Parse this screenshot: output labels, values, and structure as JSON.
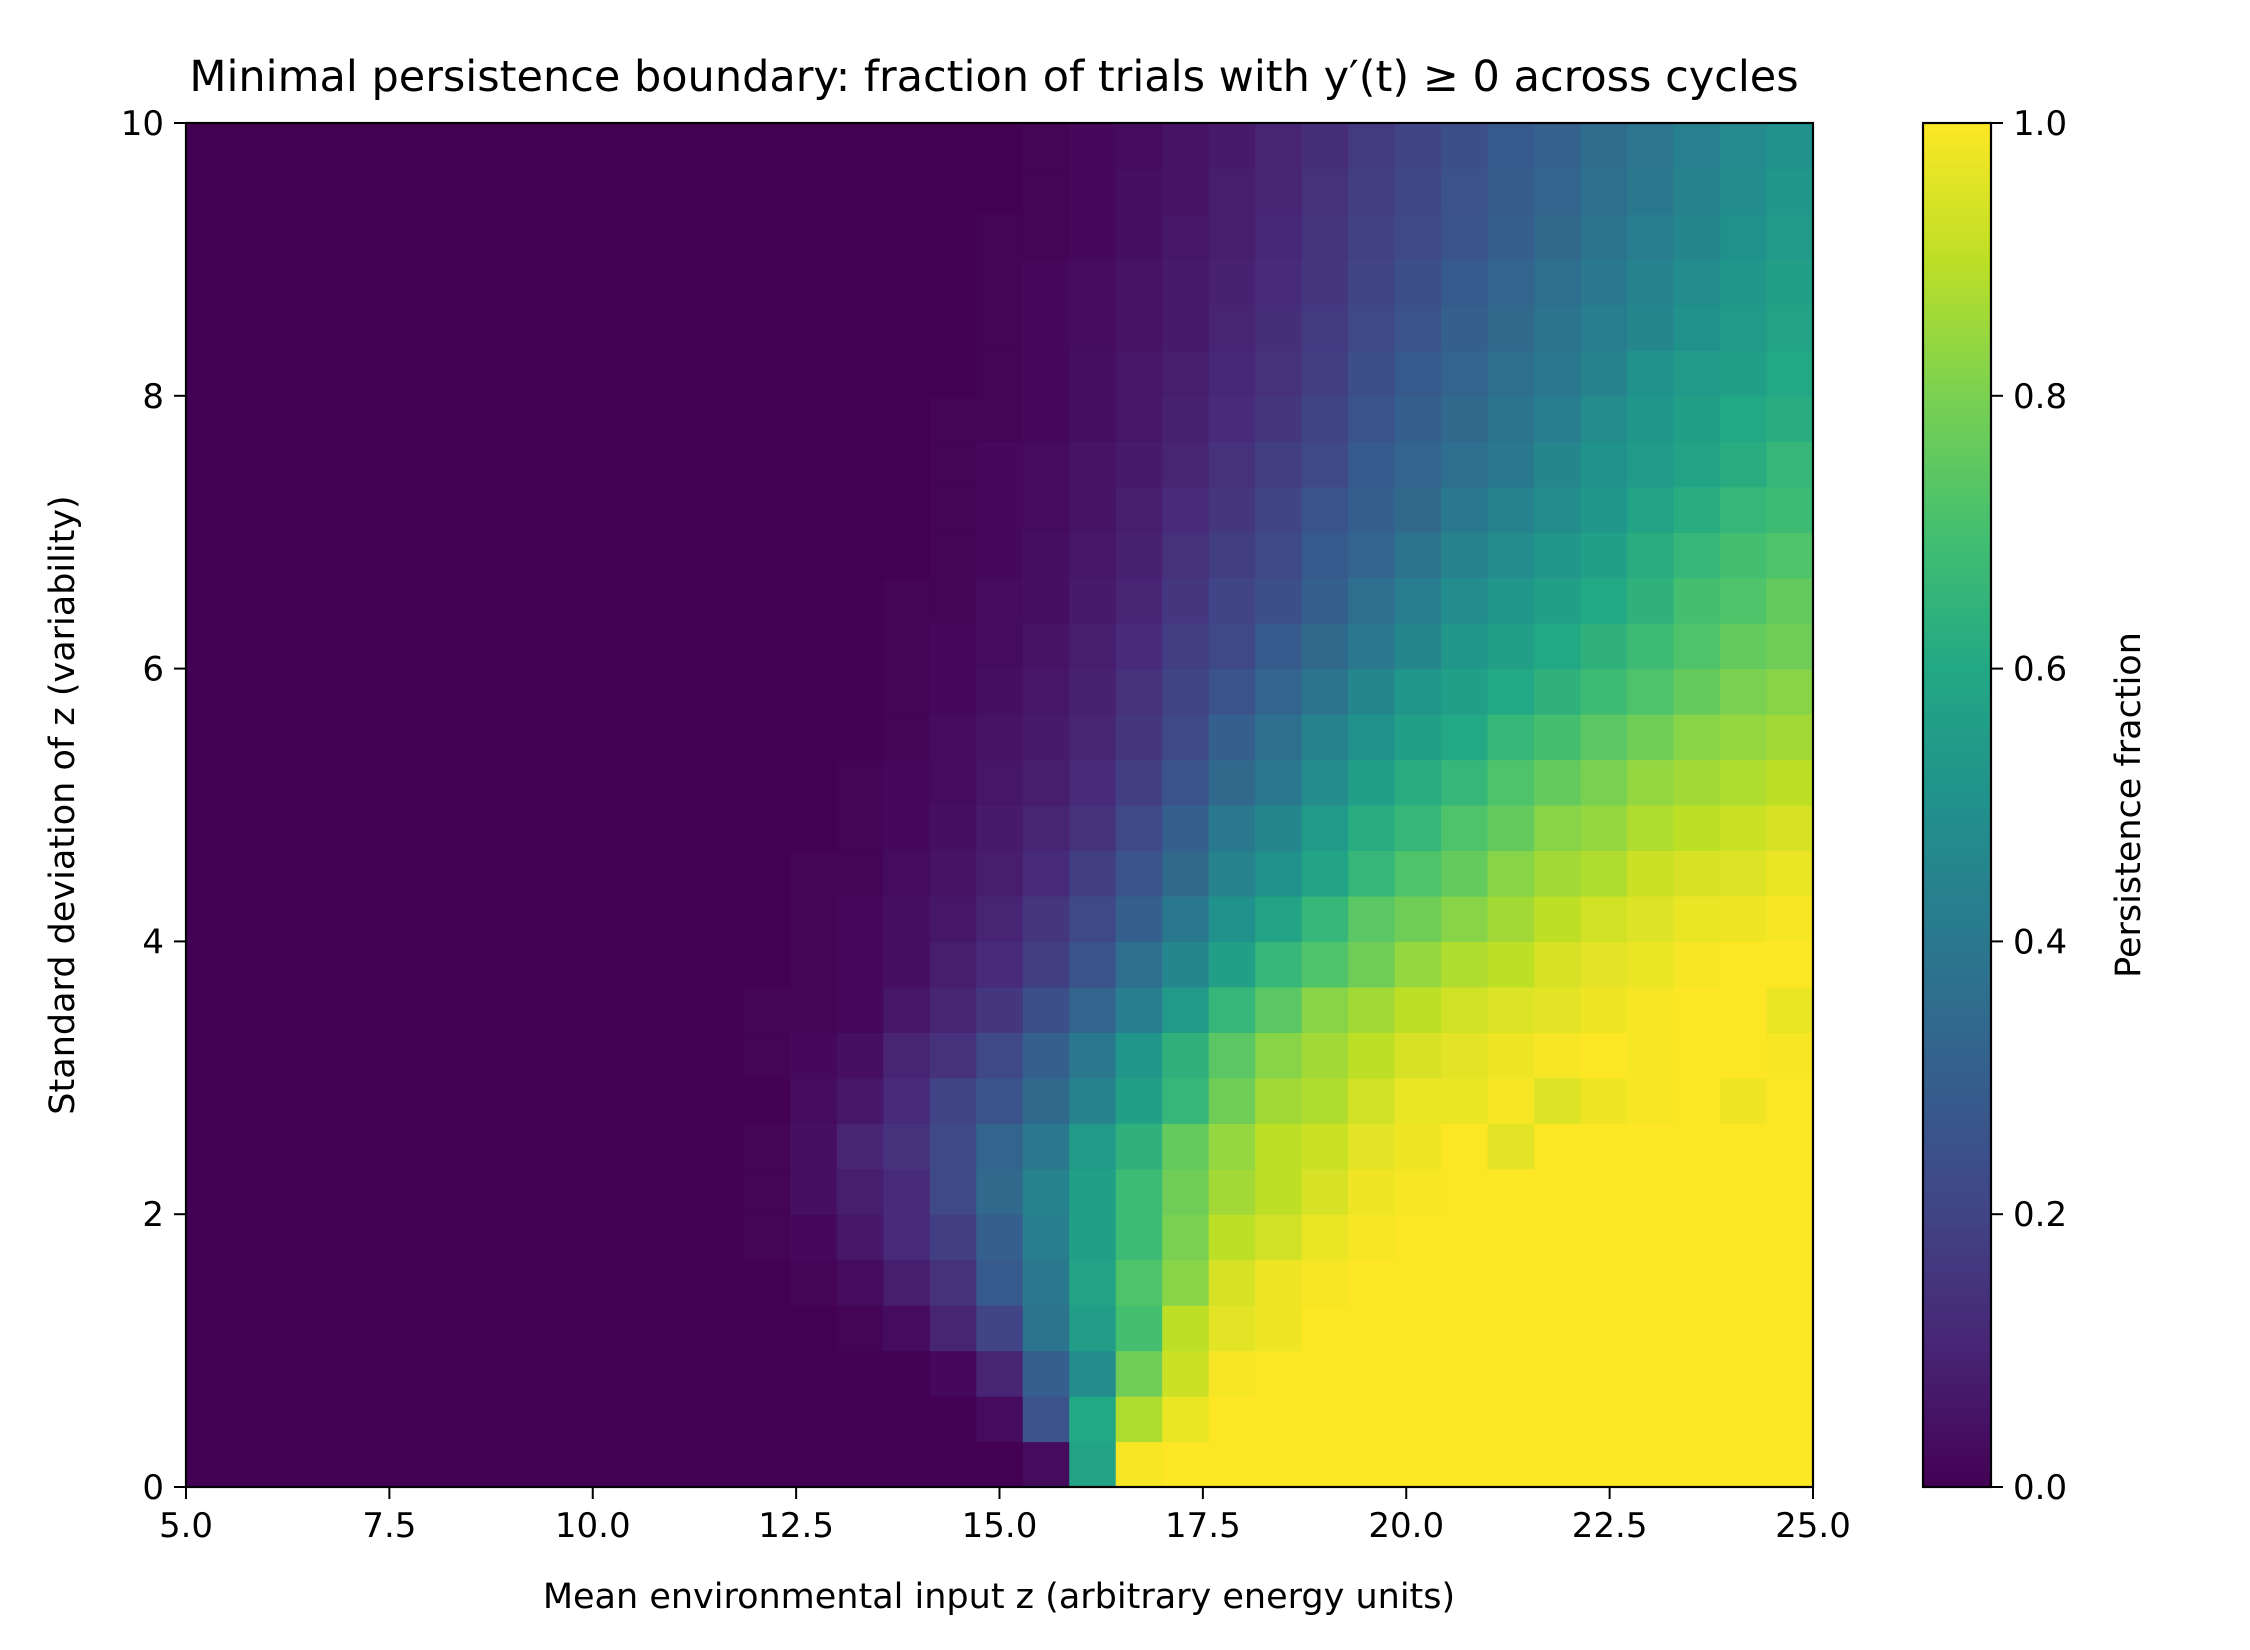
{
  "chart_data": {
    "type": "heatmap",
    "title": "Minimal persistence boundary: fraction of trials with y′(t) ≥ 0 across cycles",
    "xlabel": "Mean environmental input z (arbitrary energy units)",
    "ylabel": "Standard deviation of z (variability)",
    "xlim": [
      5.0,
      25.0
    ],
    "ylim": [
      0,
      10
    ],
    "x_ticks": [
      "5.0",
      "7.5",
      "10.0",
      "12.5",
      "15.0",
      "17.5",
      "20.0",
      "22.5",
      "25.0"
    ],
    "y_ticks": [
      "0",
      "2",
      "4",
      "6",
      "8",
      "10"
    ],
    "grid": false,
    "colormap": "viridis",
    "colorbar": {
      "label": "Persistence fraction",
      "range": [
        0.0,
        1.0
      ],
      "ticks": [
        "0.0",
        "0.2",
        "0.4",
        "0.6",
        "0.8",
        "1.0"
      ]
    },
    "x_bins": 35,
    "y_bins": 30,
    "x_centers_first_last": [
      5.29,
      24.71
    ],
    "y_centers_first_last": [
      0.17,
      9.83
    ],
    "boundary_model": {
      "description_note": "",
      "mean_threshold": 15.3,
      "gradient_width_base": 0.7,
      "gradient_width_per_sd": 0.55
    },
    "values_rows_bottom_to_top": [
      [
        0.0,
        0.0,
        0.0,
        0.0,
        0.0,
        0.0,
        0.0,
        0.0,
        0.0,
        0.0,
        0.0,
        0.0,
        0.0,
        0.0,
        0.0,
        0.0,
        0.0,
        0.0,
        0.03,
        0.58,
        0.99,
        1.0,
        1.0,
        1.0,
        1.0,
        1.0,
        1.0,
        1.0,
        1.0,
        1.0,
        1.0,
        1.0,
        1.0,
        1.0,
        1.0
      ],
      [
        0.0,
        0.0,
        0.0,
        0.0,
        0.0,
        0.0,
        0.0,
        0.0,
        0.0,
        0.0,
        0.0,
        0.0,
        0.0,
        0.0,
        0.0,
        0.0,
        0.0,
        0.03,
        0.25,
        0.6,
        0.88,
        0.97,
        1.0,
        1.0,
        1.0,
        1.0,
        1.0,
        1.0,
        1.0,
        1.0,
        1.0,
        1.0,
        1.0,
        1.0,
        1.0
      ],
      [
        0.0,
        0.0,
        0.0,
        0.0,
        0.0,
        0.0,
        0.0,
        0.0,
        0.0,
        0.0,
        0.0,
        0.0,
        0.0,
        0.0,
        0.0,
        0.0,
        0.02,
        0.1,
        0.3,
        0.48,
        0.78,
        0.92,
        0.99,
        1.0,
        1.0,
        1.0,
        1.0,
        1.0,
        1.0,
        1.0,
        1.0,
        1.0,
        1.0,
        1.0,
        1.0
      ],
      [
        0.0,
        0.0,
        0.0,
        0.0,
        0.0,
        0.0,
        0.0,
        0.0,
        0.0,
        0.0,
        0.0,
        0.0,
        0.0,
        0.0,
        0.01,
        0.03,
        0.1,
        0.2,
        0.38,
        0.55,
        0.7,
        0.9,
        0.96,
        0.98,
        1.0,
        1.0,
        1.0,
        1.0,
        1.0,
        1.0,
        1.0,
        1.0,
        1.0,
        1.0,
        1.0
      ],
      [
        0.0,
        0.0,
        0.0,
        0.0,
        0.0,
        0.0,
        0.0,
        0.0,
        0.0,
        0.0,
        0.0,
        0.0,
        0.0,
        0.01,
        0.03,
        0.08,
        0.14,
        0.28,
        0.4,
        0.58,
        0.72,
        0.82,
        0.94,
        0.98,
        0.99,
        1.0,
        1.0,
        1.0,
        1.0,
        1.0,
        1.0,
        1.0,
        1.0,
        1.0,
        1.0
      ],
      [
        0.0,
        0.0,
        0.0,
        0.0,
        0.0,
        0.0,
        0.0,
        0.0,
        0.0,
        0.0,
        0.0,
        0.0,
        0.01,
        0.02,
        0.06,
        0.12,
        0.18,
        0.3,
        0.42,
        0.56,
        0.68,
        0.8,
        0.9,
        0.93,
        0.97,
        0.99,
        1.0,
        1.0,
        1.0,
        1.0,
        1.0,
        1.0,
        1.0,
        1.0,
        1.0
      ],
      [
        0.0,
        0.0,
        0.0,
        0.0,
        0.0,
        0.0,
        0.0,
        0.0,
        0.0,
        0.0,
        0.0,
        0.0,
        0.01,
        0.04,
        0.08,
        0.12,
        0.22,
        0.34,
        0.44,
        0.56,
        0.68,
        0.78,
        0.86,
        0.9,
        0.94,
        0.98,
        0.99,
        1.0,
        1.0,
        1.0,
        1.0,
        1.0,
        1.0,
        1.0,
        1.0
      ],
      [
        0.0,
        0.0,
        0.0,
        0.0,
        0.0,
        0.0,
        0.0,
        0.0,
        0.0,
        0.0,
        0.0,
        0.0,
        0.01,
        0.04,
        0.1,
        0.14,
        0.22,
        0.32,
        0.4,
        0.54,
        0.64,
        0.76,
        0.84,
        0.9,
        0.92,
        0.96,
        0.98,
        1.0,
        0.96,
        1.0,
        1.0,
        1.0,
        1.0,
        1.0,
        1.0
      ],
      [
        0.0,
        0.0,
        0.0,
        0.0,
        0.0,
        0.0,
        0.0,
        0.0,
        0.0,
        0.0,
        0.0,
        0.0,
        0.0,
        0.03,
        0.06,
        0.12,
        0.2,
        0.26,
        0.34,
        0.44,
        0.56,
        0.66,
        0.78,
        0.86,
        0.88,
        0.93,
        0.97,
        0.97,
        0.99,
        0.95,
        0.98,
        0.99,
        1.0,
        0.98,
        1.0
      ],
      [
        0.0,
        0.0,
        0.0,
        0.0,
        0.0,
        0.0,
        0.0,
        0.0,
        0.0,
        0.0,
        0.0,
        0.0,
        0.01,
        0.02,
        0.04,
        0.1,
        0.14,
        0.22,
        0.3,
        0.4,
        0.52,
        0.64,
        0.74,
        0.82,
        0.86,
        0.9,
        0.94,
        0.96,
        0.98,
        0.99,
        1.0,
        0.99,
        1.0,
        1.0,
        0.99
      ],
      [
        0.0,
        0.0,
        0.0,
        0.0,
        0.0,
        0.0,
        0.0,
        0.0,
        0.0,
        0.0,
        0.0,
        0.0,
        0.01,
        0.01,
        0.02,
        0.06,
        0.1,
        0.16,
        0.24,
        0.32,
        0.42,
        0.54,
        0.66,
        0.74,
        0.82,
        0.86,
        0.9,
        0.93,
        0.95,
        0.96,
        0.98,
        0.99,
        1.0,
        1.0,
        0.97
      ],
      [
        0.0,
        0.0,
        0.0,
        0.0,
        0.0,
        0.0,
        0.0,
        0.0,
        0.0,
        0.0,
        0.0,
        0.0,
        0.0,
        0.01,
        0.02,
        0.04,
        0.08,
        0.12,
        0.18,
        0.26,
        0.36,
        0.46,
        0.56,
        0.66,
        0.72,
        0.78,
        0.84,
        0.88,
        0.9,
        0.94,
        0.96,
        0.97,
        0.99,
        1.0,
        1.0
      ],
      [
        0.0,
        0.0,
        0.0,
        0.0,
        0.0,
        0.0,
        0.0,
        0.0,
        0.0,
        0.0,
        0.0,
        0.0,
        0.0,
        0.01,
        0.02,
        0.04,
        0.06,
        0.1,
        0.16,
        0.22,
        0.3,
        0.4,
        0.5,
        0.58,
        0.66,
        0.74,
        0.78,
        0.82,
        0.86,
        0.9,
        0.93,
        0.95,
        0.97,
        0.98,
        0.99
      ],
      [
        0.0,
        0.0,
        0.0,
        0.0,
        0.0,
        0.0,
        0.0,
        0.0,
        0.0,
        0.0,
        0.0,
        0.0,
        0.0,
        0.01,
        0.01,
        0.03,
        0.05,
        0.08,
        0.12,
        0.18,
        0.26,
        0.34,
        0.44,
        0.5,
        0.58,
        0.66,
        0.72,
        0.76,
        0.82,
        0.86,
        0.88,
        0.92,
        0.94,
        0.95,
        0.97
      ],
      [
        0.0,
        0.0,
        0.0,
        0.0,
        0.0,
        0.0,
        0.0,
        0.0,
        0.0,
        0.0,
        0.0,
        0.0,
        0.0,
        0.0,
        0.01,
        0.02,
        0.04,
        0.07,
        0.1,
        0.14,
        0.22,
        0.3,
        0.4,
        0.46,
        0.54,
        0.62,
        0.66,
        0.72,
        0.76,
        0.82,
        0.84,
        0.88,
        0.9,
        0.92,
        0.94
      ],
      [
        0.0,
        0.0,
        0.0,
        0.0,
        0.0,
        0.0,
        0.0,
        0.0,
        0.0,
        0.0,
        0.0,
        0.0,
        0.0,
        0.0,
        0.01,
        0.02,
        0.03,
        0.06,
        0.08,
        0.12,
        0.18,
        0.26,
        0.34,
        0.4,
        0.48,
        0.56,
        0.62,
        0.66,
        0.72,
        0.76,
        0.8,
        0.84,
        0.86,
        0.88,
        0.9
      ],
      [
        0.0,
        0.0,
        0.0,
        0.0,
        0.0,
        0.0,
        0.0,
        0.0,
        0.0,
        0.0,
        0.0,
        0.0,
        0.0,
        0.0,
        0.0,
        0.01,
        0.03,
        0.05,
        0.07,
        0.1,
        0.16,
        0.22,
        0.3,
        0.36,
        0.44,
        0.5,
        0.56,
        0.6,
        0.66,
        0.7,
        0.74,
        0.78,
        0.82,
        0.84,
        0.86
      ],
      [
        0.0,
        0.0,
        0.0,
        0.0,
        0.0,
        0.0,
        0.0,
        0.0,
        0.0,
        0.0,
        0.0,
        0.0,
        0.0,
        0.0,
        0.0,
        0.01,
        0.02,
        0.04,
        0.06,
        0.09,
        0.14,
        0.2,
        0.26,
        0.32,
        0.38,
        0.46,
        0.52,
        0.56,
        0.6,
        0.64,
        0.68,
        0.72,
        0.76,
        0.8,
        0.82
      ],
      [
        0.0,
        0.0,
        0.0,
        0.0,
        0.0,
        0.0,
        0.0,
        0.0,
        0.0,
        0.0,
        0.0,
        0.0,
        0.0,
        0.0,
        0.0,
        0.01,
        0.02,
        0.03,
        0.05,
        0.08,
        0.12,
        0.18,
        0.22,
        0.28,
        0.34,
        0.4,
        0.46,
        0.52,
        0.56,
        0.6,
        0.64,
        0.68,
        0.72,
        0.76,
        0.78
      ],
      [
        0.0,
        0.0,
        0.0,
        0.0,
        0.0,
        0.0,
        0.0,
        0.0,
        0.0,
        0.0,
        0.0,
        0.0,
        0.0,
        0.0,
        0.0,
        0.01,
        0.01,
        0.03,
        0.04,
        0.07,
        0.1,
        0.16,
        0.2,
        0.24,
        0.3,
        0.36,
        0.42,
        0.48,
        0.52,
        0.56,
        0.6,
        0.64,
        0.7,
        0.72,
        0.76
      ],
      [
        0.0,
        0.0,
        0.0,
        0.0,
        0.0,
        0.0,
        0.0,
        0.0,
        0.0,
        0.0,
        0.0,
        0.0,
        0.0,
        0.0,
        0.0,
        0.0,
        0.01,
        0.02,
        0.04,
        0.06,
        0.09,
        0.14,
        0.18,
        0.22,
        0.28,
        0.32,
        0.38,
        0.44,
        0.48,
        0.52,
        0.56,
        0.62,
        0.66,
        0.7,
        0.72
      ],
      [
        0.0,
        0.0,
        0.0,
        0.0,
        0.0,
        0.0,
        0.0,
        0.0,
        0.0,
        0.0,
        0.0,
        0.0,
        0.0,
        0.0,
        0.0,
        0.0,
        0.01,
        0.02,
        0.03,
        0.05,
        0.08,
        0.12,
        0.16,
        0.2,
        0.26,
        0.3,
        0.34,
        0.4,
        0.44,
        0.48,
        0.52,
        0.58,
        0.62,
        0.66,
        0.68
      ],
      [
        0.0,
        0.0,
        0.0,
        0.0,
        0.0,
        0.0,
        0.0,
        0.0,
        0.0,
        0.0,
        0.0,
        0.0,
        0.0,
        0.0,
        0.0,
        0.0,
        0.01,
        0.02,
        0.03,
        0.05,
        0.07,
        0.1,
        0.14,
        0.18,
        0.22,
        0.28,
        0.32,
        0.36,
        0.4,
        0.46,
        0.5,
        0.54,
        0.58,
        0.62,
        0.66
      ],
      [
        0.0,
        0.0,
        0.0,
        0.0,
        0.0,
        0.0,
        0.0,
        0.0,
        0.0,
        0.0,
        0.0,
        0.0,
        0.0,
        0.0,
        0.0,
        0.0,
        0.01,
        0.01,
        0.02,
        0.04,
        0.06,
        0.09,
        0.12,
        0.16,
        0.2,
        0.26,
        0.3,
        0.34,
        0.38,
        0.42,
        0.48,
        0.52,
        0.56,
        0.6,
        0.62
      ],
      [
        0.0,
        0.0,
        0.0,
        0.0,
        0.0,
        0.0,
        0.0,
        0.0,
        0.0,
        0.0,
        0.0,
        0.0,
        0.0,
        0.0,
        0.0,
        0.0,
        0.0,
        0.01,
        0.02,
        0.04,
        0.06,
        0.08,
        0.11,
        0.14,
        0.18,
        0.24,
        0.28,
        0.32,
        0.36,
        0.4,
        0.44,
        0.5,
        0.54,
        0.56,
        0.6
      ],
      [
        0.0,
        0.0,
        0.0,
        0.0,
        0.0,
        0.0,
        0.0,
        0.0,
        0.0,
        0.0,
        0.0,
        0.0,
        0.0,
        0.0,
        0.0,
        0.0,
        0.0,
        0.01,
        0.02,
        0.03,
        0.05,
        0.07,
        0.1,
        0.13,
        0.17,
        0.22,
        0.26,
        0.3,
        0.34,
        0.38,
        0.42,
        0.46,
        0.5,
        0.54,
        0.58
      ],
      [
        0.0,
        0.0,
        0.0,
        0.0,
        0.0,
        0.0,
        0.0,
        0.0,
        0.0,
        0.0,
        0.0,
        0.0,
        0.0,
        0.0,
        0.0,
        0.0,
        0.0,
        0.01,
        0.02,
        0.03,
        0.05,
        0.07,
        0.09,
        0.12,
        0.16,
        0.2,
        0.24,
        0.28,
        0.32,
        0.36,
        0.4,
        0.44,
        0.48,
        0.52,
        0.56
      ],
      [
        0.0,
        0.0,
        0.0,
        0.0,
        0.0,
        0.0,
        0.0,
        0.0,
        0.0,
        0.0,
        0.0,
        0.0,
        0.0,
        0.0,
        0.0,
        0.0,
        0.0,
        0.01,
        0.01,
        0.02,
        0.04,
        0.06,
        0.08,
        0.11,
        0.15,
        0.19,
        0.22,
        0.26,
        0.3,
        0.34,
        0.38,
        0.42,
        0.46,
        0.5,
        0.54
      ],
      [
        0.0,
        0.0,
        0.0,
        0.0,
        0.0,
        0.0,
        0.0,
        0.0,
        0.0,
        0.0,
        0.0,
        0.0,
        0.0,
        0.0,
        0.0,
        0.0,
        0.0,
        0.0,
        0.01,
        0.02,
        0.04,
        0.05,
        0.08,
        0.1,
        0.14,
        0.18,
        0.21,
        0.25,
        0.29,
        0.32,
        0.36,
        0.4,
        0.44,
        0.48,
        0.52
      ],
      [
        0.0,
        0.0,
        0.0,
        0.0,
        0.0,
        0.0,
        0.0,
        0.0,
        0.0,
        0.0,
        0.0,
        0.0,
        0.0,
        0.0,
        0.0,
        0.0,
        0.0,
        0.0,
        0.01,
        0.02,
        0.03,
        0.05,
        0.07,
        0.1,
        0.13,
        0.17,
        0.2,
        0.24,
        0.28,
        0.31,
        0.35,
        0.39,
        0.43,
        0.47,
        0.5
      ]
    ]
  }
}
